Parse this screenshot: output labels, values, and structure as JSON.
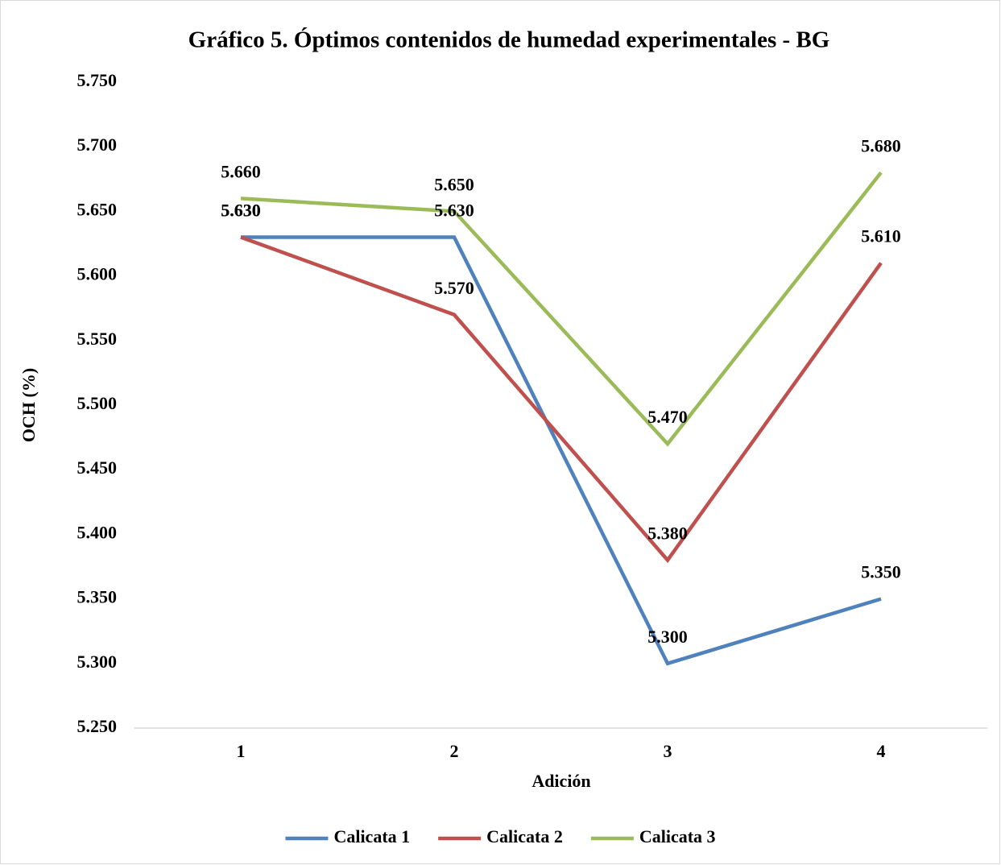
{
  "chart_data": {
    "type": "line",
    "title": "Gráfico 5. Óptimos contenidos de humedad experimentales - BG",
    "x_label": "Adición",
    "y_label": "OCH (%)",
    "categories": [
      "1",
      "2",
      "3",
      "4"
    ],
    "series": [
      {
        "name": "Calicata 1",
        "color": "#4f81bd",
        "values": [
          5.63,
          5.63,
          5.3,
          5.35
        ],
        "value_labels": [
          "5.630",
          "5.630",
          "5.300",
          "5.350"
        ]
      },
      {
        "name": "Calicata 2",
        "color": "#c0504d",
        "values": [
          5.63,
          5.57,
          5.38,
          5.61
        ],
        "value_labels": [
          "5.630",
          "5.570",
          "5.380",
          "5.610"
        ]
      },
      {
        "name": "Calicata 3",
        "color": "#9bbb59",
        "values": [
          5.66,
          5.65,
          5.47,
          5.68
        ],
        "value_labels": [
          "5.660",
          "5.650",
          "5.470",
          "5.680"
        ]
      }
    ],
    "ylim": [
      5.25,
      5.75
    ],
    "yticks": [
      {
        "value": 5.25,
        "label": "5.250"
      },
      {
        "value": 5.3,
        "label": "5.300"
      },
      {
        "value": 5.35,
        "label": "5.350"
      },
      {
        "value": 5.4,
        "label": "5.400"
      },
      {
        "value": 5.45,
        "label": "5.450"
      },
      {
        "value": 5.5,
        "label": "5.500"
      },
      {
        "value": 5.55,
        "label": "5.550"
      },
      {
        "value": 5.6,
        "label": "5.600"
      },
      {
        "value": 5.65,
        "label": "5.650"
      },
      {
        "value": 5.7,
        "label": "5.700"
      },
      {
        "value": 5.75,
        "label": "5.750"
      }
    ],
    "grid": false,
    "legend": "bottom"
  }
}
